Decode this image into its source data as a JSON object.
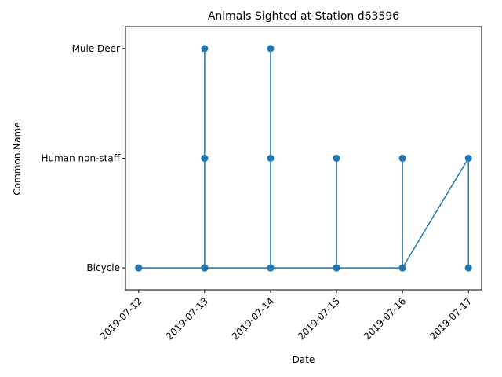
{
  "chart_data": {
    "type": "line",
    "title": "Animals Sighted at Station d63596",
    "xlabel": "Date",
    "ylabel": "Common.Name",
    "x_ticks": [
      "2019-07-12",
      "2019-07-13",
      "2019-07-14",
      "2019-07-15",
      "2019-07-16",
      "2019-07-17"
    ],
    "y_categories": [
      "Bicycle",
      "Human non-staff",
      "Mule Deer"
    ],
    "xlim": [
      "2019-07-11 19:12",
      "2019-07-17 04:48"
    ],
    "grid": false,
    "legend": "none",
    "marker": "circle",
    "color": "#1f77b4",
    "series": [
      {
        "points": [
          {
            "x": "2019-07-12",
            "y": "Bicycle"
          },
          {
            "x": "2019-07-12",
            "y": "Bicycle"
          },
          {
            "x": "2019-07-13",
            "y": "Bicycle"
          },
          {
            "x": "2019-07-13",
            "y": "Mule Deer"
          },
          {
            "x": "2019-07-13",
            "y": "Human non-staff"
          },
          {
            "x": "2019-07-13",
            "y": "Human non-staff"
          },
          {
            "x": "2019-07-13",
            "y": "Bicycle"
          },
          {
            "x": "2019-07-13",
            "y": "Bicycle"
          },
          {
            "x": "2019-07-14",
            "y": "Bicycle"
          },
          {
            "x": "2019-07-14",
            "y": "Mule Deer"
          },
          {
            "x": "2019-07-14",
            "y": "Human non-staff"
          },
          {
            "x": "2019-07-14",
            "y": "Bicycle"
          },
          {
            "x": "2019-07-14",
            "y": "Bicycle"
          },
          {
            "x": "2019-07-15",
            "y": "Bicycle"
          },
          {
            "x": "2019-07-15",
            "y": "Human non-staff"
          },
          {
            "x": "2019-07-15",
            "y": "Human non-staff"
          },
          {
            "x": "2019-07-15",
            "y": "Bicycle"
          },
          {
            "x": "2019-07-15",
            "y": "Bicycle"
          },
          {
            "x": "2019-07-16",
            "y": "Bicycle"
          },
          {
            "x": "2019-07-16",
            "y": "Human non-staff"
          },
          {
            "x": "2019-07-16",
            "y": "Human non-staff"
          },
          {
            "x": "2019-07-16",
            "y": "Bicycle"
          },
          {
            "x": "2019-07-16",
            "y": "Bicycle"
          },
          {
            "x": "2019-07-17",
            "y": "Human non-staff"
          },
          {
            "x": "2019-07-17",
            "y": "Bicycle"
          }
        ]
      }
    ]
  }
}
